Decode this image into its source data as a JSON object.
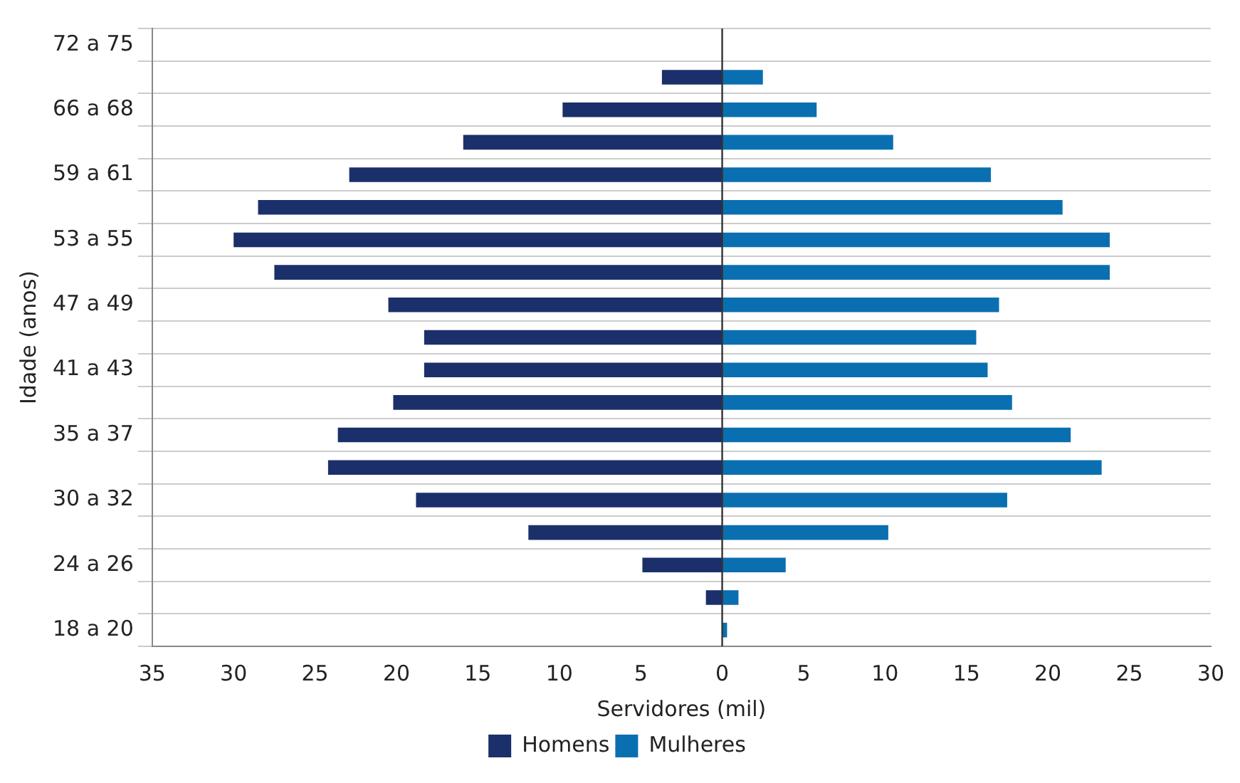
{
  "chart_data": {
    "type": "bar",
    "orientation": "horizontal",
    "xlabel": "Servidores (mil)",
    "ylabel": "Idade (anos)",
    "categories": [
      "72 a 75",
      null,
      "66 a 68",
      null,
      "59 a 61",
      null,
      "53 a 55",
      null,
      "47 a 49",
      null,
      "41 a 43",
      null,
      "35 a 37",
      null,
      "30 a 32",
      null,
      "24 a 26",
      null,
      "18 a 20"
    ],
    "series": [
      {
        "name": "Homens",
        "color": "#1b2f6b",
        "values": [
          null,
          -3.7,
          -9.8,
          -15.9,
          -22.9,
          -28.5,
          -30.0,
          -27.5,
          -20.5,
          -18.3,
          -18.3,
          -20.2,
          -23.6,
          -24.2,
          -18.8,
          -11.9,
          -4.9,
          -1.0,
          null
        ]
      },
      {
        "name": "Mulheres",
        "color": "#0a6fb0",
        "values": [
          null,
          2.5,
          5.8,
          10.5,
          16.5,
          20.9,
          23.8,
          23.8,
          17.0,
          15.6,
          16.3,
          17.8,
          21.4,
          23.3,
          17.5,
          10.2,
          3.9,
          1.0,
          0.3
        ]
      }
    ],
    "xlim": [
      -35,
      30
    ],
    "xticks": [
      {
        "value": -35,
        "label": "35"
      },
      {
        "value": -30,
        "label": "30"
      },
      {
        "value": -25,
        "label": "25"
      },
      {
        "value": -20,
        "label": "20"
      },
      {
        "value": -15,
        "label": "15"
      },
      {
        "value": -10,
        "label": "10"
      },
      {
        "value": -5,
        "label": "5"
      },
      0,
      5,
      10,
      15,
      20,
      25,
      30
    ],
    "ref_lines": [
      {
        "axis": "x",
        "value": 0,
        "color": "#333333"
      }
    ],
    "grid": "y",
    "legend": "bottom",
    "stacked": true
  }
}
